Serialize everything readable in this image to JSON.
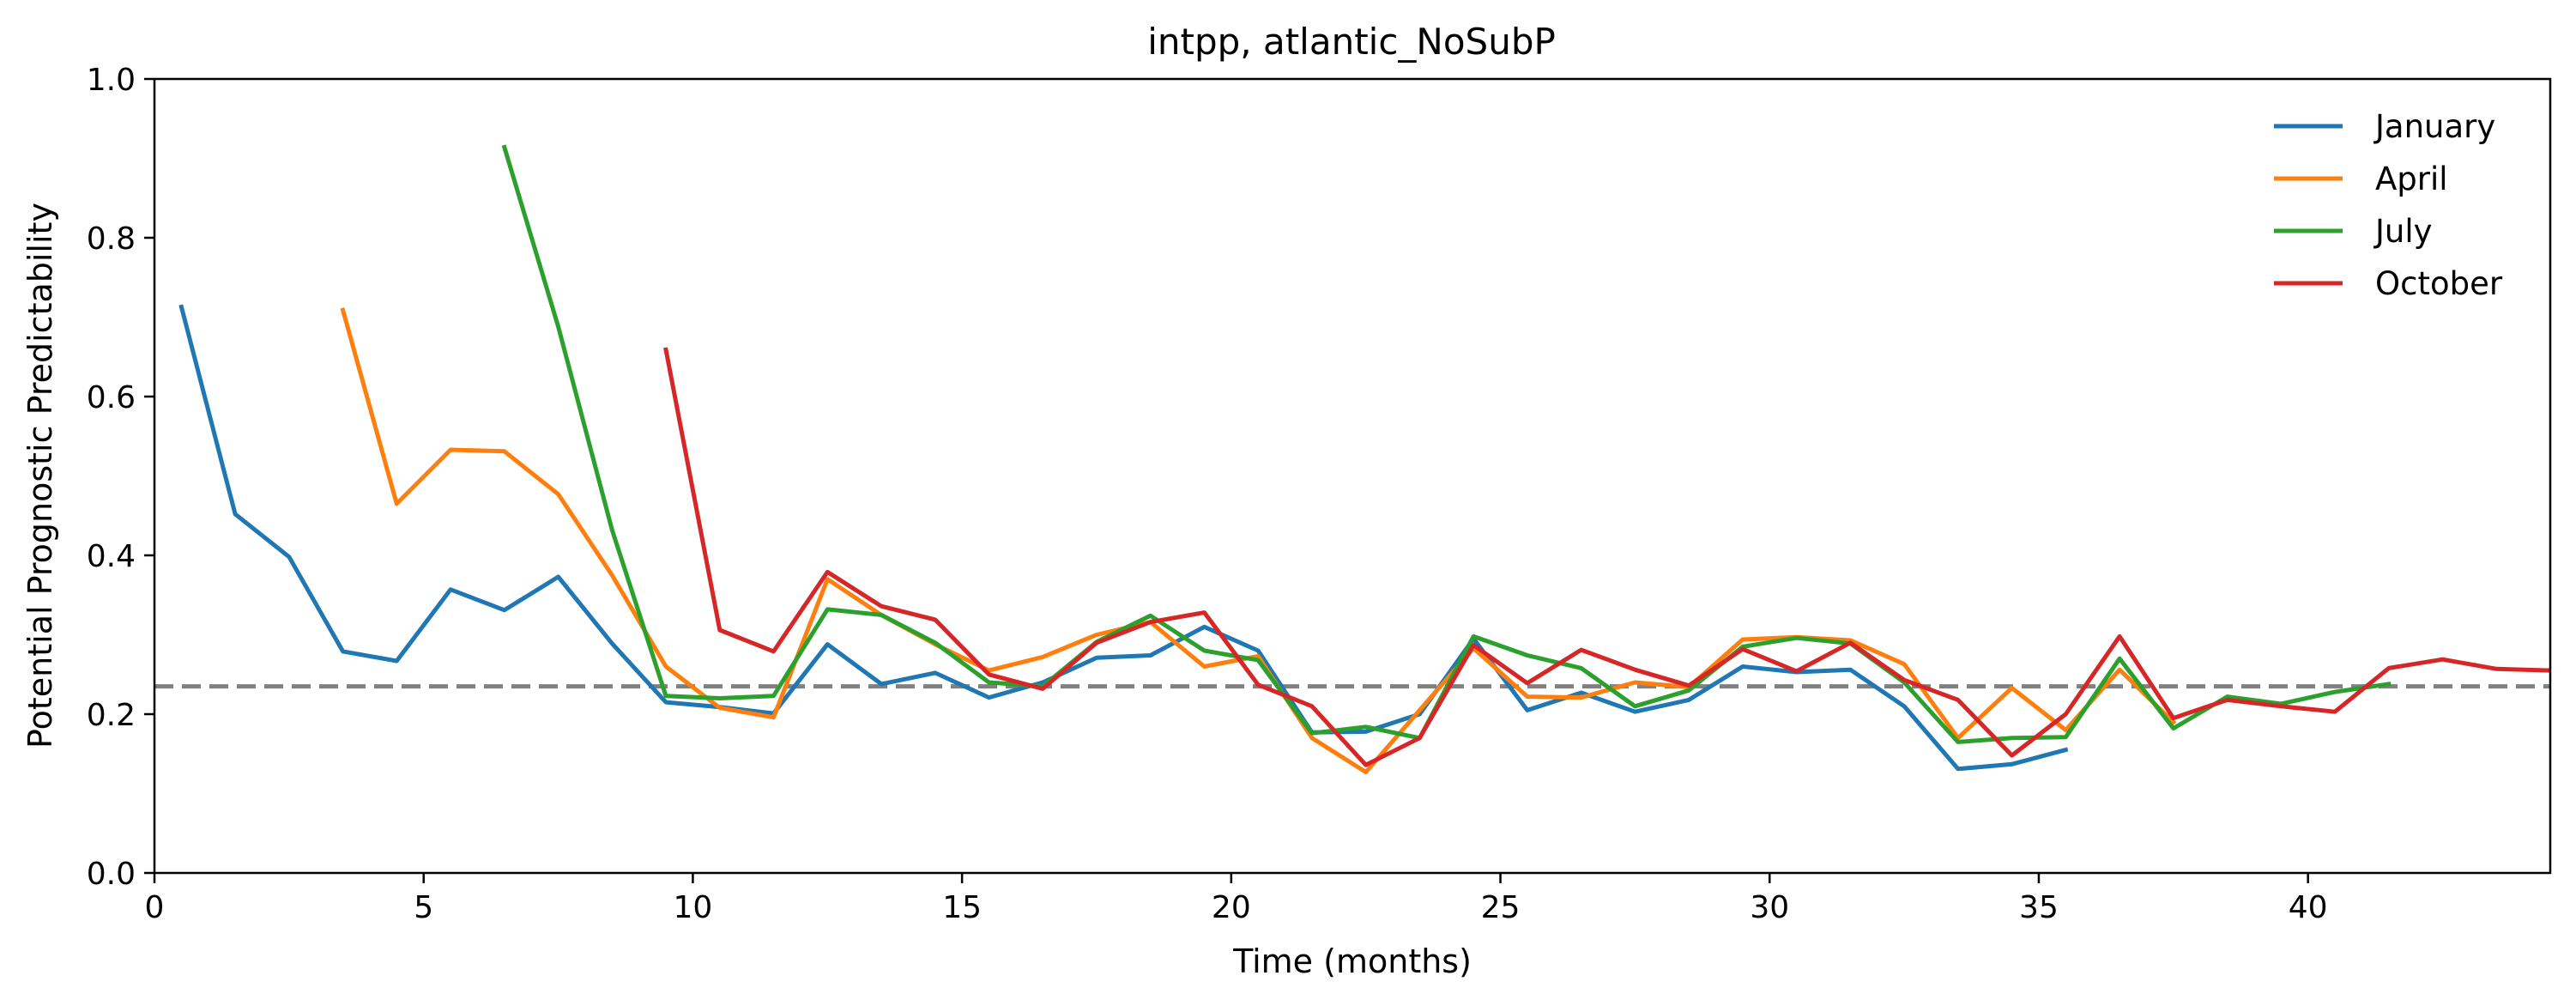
{
  "chart_data": {
    "type": "line",
    "title": "intpp, atlantic_NoSubP",
    "xlabel": "Time (months)",
    "ylabel": "Potential Prognostic Predictability",
    "xlim": [
      0,
      44.5
    ],
    "ylim": [
      0,
      1.0
    ],
    "x_ticks": [
      0,
      5,
      10,
      15,
      20,
      25,
      30,
      35,
      40
    ],
    "y_ticks": [
      0.0,
      0.2,
      0.4,
      0.6,
      0.8,
      1.0
    ],
    "x_tick_labels": [
      "0",
      "5",
      "10",
      "15",
      "20",
      "25",
      "30",
      "35",
      "40"
    ],
    "y_tick_labels": [
      "0.0",
      "0.2",
      "0.4",
      "0.6",
      "0.8",
      "1.0"
    ],
    "grid": false,
    "legend_position": "top-right",
    "threshold": {
      "value": 0.235,
      "style": "dashed",
      "color": "#808080"
    },
    "series": [
      {
        "name": "January",
        "color": "#1f77b4",
        "x": [
          0.5,
          1.5,
          2.5,
          3.5,
          4.5,
          5.5,
          6.5,
          7.5,
          8.5,
          9.5,
          10.5,
          11.5,
          12.5,
          13.5,
          14.5,
          15.5,
          16.5,
          17.5,
          18.5,
          19.5,
          20.5,
          21.5,
          22.5,
          23.5,
          24.5,
          25.5,
          26.5,
          27.5,
          28.5,
          29.5,
          30.5,
          31.5,
          32.5,
          33.5,
          34.5,
          35.5
        ],
        "y": [
          0.713,
          0.452,
          0.398,
          0.279,
          0.267,
          0.357,
          0.331,
          0.373,
          0.289,
          0.215,
          0.209,
          0.201,
          0.288,
          0.238,
          0.252,
          0.221,
          0.24,
          0.271,
          0.274,
          0.31,
          0.28,
          0.177,
          0.178,
          0.2,
          0.295,
          0.205,
          0.227,
          0.203,
          0.218,
          0.26,
          0.253,
          0.256,
          0.21,
          0.131,
          0.137,
          0.155
        ]
      },
      {
        "name": "April",
        "color": "#ff7f0e",
        "x": [
          3.5,
          4.5,
          5.5,
          6.5,
          7.5,
          8.5,
          9.5,
          10.5,
          11.5,
          12.5,
          13.5,
          14.5,
          15.5,
          16.5,
          17.5,
          18.5,
          19.5,
          20.5,
          21.5,
          22.5,
          23.5,
          24.5,
          25.5,
          26.5,
          27.5,
          28.5,
          29.5,
          30.5,
          31.5,
          32.5,
          33.5,
          34.5,
          35.5,
          36.5,
          37.5
        ],
        "y": [
          0.709,
          0.465,
          0.533,
          0.531,
          0.477,
          0.375,
          0.26,
          0.208,
          0.196,
          0.37,
          0.325,
          0.288,
          0.255,
          0.272,
          0.3,
          0.316,
          0.26,
          0.273,
          0.17,
          0.127,
          0.205,
          0.283,
          0.222,
          0.221,
          0.24,
          0.234,
          0.294,
          0.297,
          0.293,
          0.263,
          0.17,
          0.233,
          0.18,
          0.256,
          0.19
        ]
      },
      {
        "name": "July",
        "color": "#2ca02c",
        "x": [
          6.5,
          7.5,
          8.5,
          9.5,
          10.5,
          11.5,
          12.5,
          13.5,
          14.5,
          15.5,
          16.5,
          17.5,
          18.5,
          19.5,
          20.5,
          21.5,
          22.5,
          23.5,
          24.5,
          25.5,
          26.5,
          27.5,
          28.5,
          29.5,
          30.5,
          31.5,
          32.5,
          33.5,
          34.5,
          35.5,
          36.5,
          37.5,
          38.5,
          39.5,
          40.5,
          41.5
        ],
        "y": [
          0.914,
          0.688,
          0.432,
          0.223,
          0.22,
          0.223,
          0.332,
          0.325,
          0.29,
          0.24,
          0.235,
          0.291,
          0.324,
          0.28,
          0.268,
          0.176,
          0.184,
          0.17,
          0.298,
          0.274,
          0.258,
          0.21,
          0.23,
          0.285,
          0.296,
          0.289,
          0.24,
          0.165,
          0.17,
          0.171,
          0.27,
          0.182,
          0.222,
          0.213,
          0.228,
          0.238
        ]
      },
      {
        "name": "October",
        "color": "#d62728",
        "x": [
          9.5,
          10.5,
          11.5,
          12.5,
          13.5,
          14.5,
          15.5,
          16.5,
          17.5,
          18.5,
          19.5,
          20.5,
          21.5,
          22.5,
          23.5,
          24.5,
          25.5,
          26.5,
          27.5,
          28.5,
          29.5,
          30.5,
          31.5,
          32.5,
          33.5,
          34.5,
          35.5,
          36.5,
          37.5,
          38.5,
          39.5,
          40.5,
          41.5,
          42.5,
          43.5,
          44.5
        ],
        "y": [
          0.659,
          0.306,
          0.279,
          0.379,
          0.336,
          0.319,
          0.25,
          0.232,
          0.29,
          0.316,
          0.328,
          0.237,
          0.21,
          0.136,
          0.17,
          0.287,
          0.239,
          0.281,
          0.256,
          0.236,
          0.282,
          0.254,
          0.29,
          0.243,
          0.218,
          0.148,
          0.2,
          0.298,
          0.195,
          0.218,
          0.21,
          0.203,
          0.258,
          0.269,
          0.257,
          0.255
        ]
      }
    ]
  }
}
